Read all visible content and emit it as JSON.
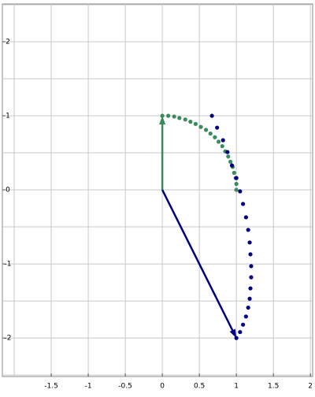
{
  "chart_data": {
    "type": "scatter",
    "xlim": [
      -2.16,
      2.03
    ],
    "ylim": [
      -2.52,
      2.51
    ],
    "xticks": [
      -1.5,
      -1,
      -0.5,
      0,
      0.5,
      1,
      1.5,
      2
    ],
    "yticks": [
      -2,
      -1,
      0,
      1,
      2
    ],
    "xgrid": [
      -2,
      -1.5,
      -1,
      -0.5,
      0,
      0.5,
      1,
      1.5,
      2
    ],
    "ygrid": [
      -2.5,
      -2,
      -1.5,
      -1,
      -0.5,
      0,
      0.5,
      1,
      1.5,
      2,
      2.5
    ],
    "grid": true,
    "series": [
      {
        "color": "#3a8a5c",
        "x": [
          1,
          1,
          0.99,
          0.97,
          0.95,
          0.92,
          0.89,
          0.85,
          0.81,
          0.76,
          0.71,
          0.65,
          0.59,
          0.52,
          0.45,
          0.38,
          0.31,
          0.23,
          0.16,
          0.08,
          0
        ],
        "values": [
          0,
          0.08,
          0.16,
          0.23,
          0.31,
          0.38,
          0.45,
          0.52,
          0.59,
          0.65,
          0.71,
          0.76,
          0.81,
          0.85,
          0.89,
          0.92,
          0.95,
          0.97,
          0.99,
          1,
          1
        ]
      },
      {
        "color": "#000080",
        "x": [
          0.67,
          0.74,
          0.82,
          0.88,
          0.94,
          1.0,
          1.05,
          1.09,
          1.13,
          1.16,
          1.18,
          1.19,
          1.2,
          1.2,
          1.19,
          1.18,
          1.16,
          1.13,
          1.09,
          1.05,
          1.0
        ],
        "values": [
          1,
          0.84,
          0.67,
          0.51,
          0.33,
          0.16,
          -0.02,
          -0.19,
          -0.37,
          -0.54,
          -0.71,
          -0.87,
          -1.03,
          -1.18,
          -1.33,
          -1.47,
          -1.59,
          -1.71,
          -1.82,
          -1.92,
          -2
        ]
      }
    ],
    "arrows": [
      {
        "color": "#3a8a5c",
        "x": [
          0,
          0
        ],
        "y": [
          0,
          1
        ]
      },
      {
        "color": "#000080",
        "x": [
          0,
          1
        ],
        "y": [
          0,
          -2
        ]
      }
    ]
  }
}
